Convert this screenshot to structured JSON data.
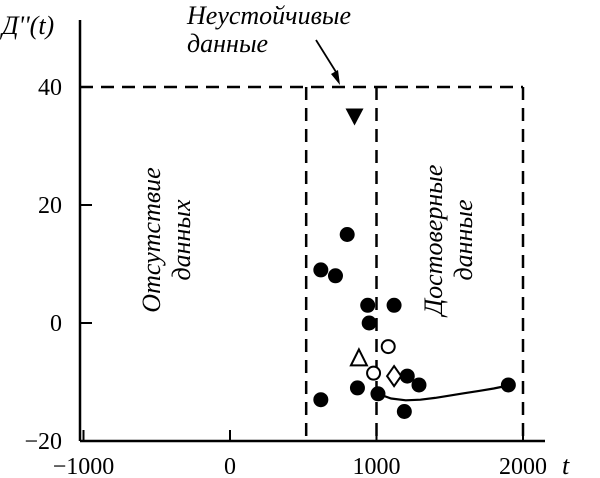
{
  "chart_data": {
    "type": "scatter",
    "xlabel": "t",
    "ylabel": "Д''(t)",
    "xlim": [
      -1000,
      2200
    ],
    "ylim": [
      -20,
      40
    ],
    "xticks": [
      -1000,
      0,
      1000,
      2000
    ],
    "yticks": [
      -20,
      0,
      20,
      40
    ],
    "xtick_labels": [
      "−1000",
      "0",
      "1000",
      "2000"
    ],
    "ytick_labels": [
      "−20",
      "0",
      "20",
      "40"
    ],
    "grid": false,
    "regions": {
      "no_data": {
        "lines": [
          "Отсутствие",
          "данных"
        ]
      },
      "unstable": {
        "lines": [
          "Неустойчивые",
          "данные"
        ]
      },
      "reliable": {
        "lines": [
          "Достоверные",
          "данные"
        ]
      }
    },
    "dashed_boundaries": {
      "x": [
        520,
        1000,
        2000
      ],
      "y_top": 40
    },
    "points": [
      {
        "marker": "filled-circle",
        "x": 620,
        "y": 9
      },
      {
        "marker": "filled-circle",
        "x": 720,
        "y": 8
      },
      {
        "marker": "filled-circle",
        "x": 800,
        "y": 15
      },
      {
        "marker": "filled-circle",
        "x": 620,
        "y": -13
      },
      {
        "marker": "filled-circle",
        "x": 870,
        "y": -11
      },
      {
        "marker": "filled-circle",
        "x": 940,
        "y": 3
      },
      {
        "marker": "filled-circle",
        "x": 950,
        "y": 0
      },
      {
        "marker": "filled-circle",
        "x": 1010,
        "y": -12
      },
      {
        "marker": "filled-circle",
        "x": 1120,
        "y": 3
      },
      {
        "marker": "filled-circle",
        "x": 1190,
        "y": -15
      },
      {
        "marker": "filled-circle",
        "x": 1210,
        "y": -9
      },
      {
        "marker": "filled-circle",
        "x": 1290,
        "y": -10.5
      },
      {
        "marker": "filled-circle",
        "x": 1900,
        "y": -10.5
      },
      {
        "marker": "filled-triangle-down",
        "x": 850,
        "y": 35
      },
      {
        "marker": "open-triangle-up",
        "x": 880,
        "y": -6
      },
      {
        "marker": "open-circle",
        "x": 980,
        "y": -8.5
      },
      {
        "marker": "open-circle",
        "x": 1080,
        "y": -4
      },
      {
        "marker": "open-diamond",
        "x": 1120,
        "y": -9
      }
    ],
    "trend_curve": {
      "x": [
        1010,
        1100,
        1200,
        1300,
        1400,
        1500,
        1600,
        1700,
        1800,
        1900
      ],
      "y": [
        -12,
        -12.8,
        -13.1,
        -13.0,
        -12.7,
        -12.3,
        -11.9,
        -11.5,
        -11.1,
        -10.6
      ]
    }
  },
  "colors": {
    "ink": "#000000",
    "background": "#ffffff"
  }
}
